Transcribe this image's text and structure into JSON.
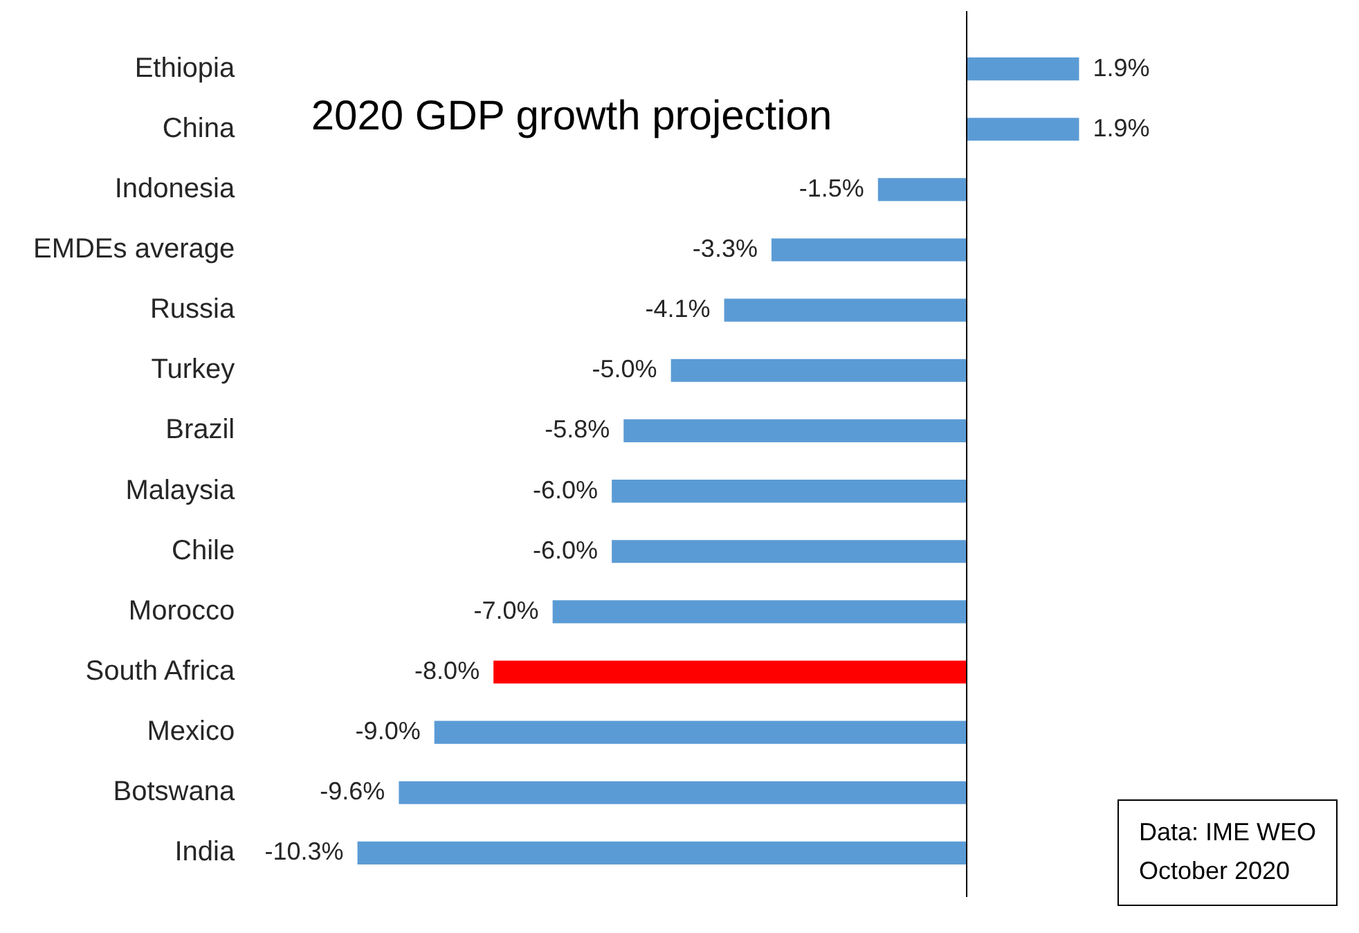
{
  "chart_data": {
    "type": "bar",
    "orientation": "horizontal",
    "title": "2020 GDP growth projection",
    "categories": [
      "Ethiopia",
      "China",
      "Indonesia",
      "EMDEs average",
      "Russia",
      "Turkey",
      "Brazil",
      "Malaysia",
      "Chile",
      "Morocco",
      "South Africa",
      "Mexico",
      "Botswana",
      "India"
    ],
    "values": [
      1.9,
      1.9,
      -1.5,
      -3.3,
      -4.1,
      -5.0,
      -5.8,
      -6.0,
      -6.0,
      -7.0,
      -8.0,
      -9.0,
      -9.6,
      -10.3
    ],
    "colors": [
      "#5b9bd5",
      "#5b9bd5",
      "#5b9bd5",
      "#5b9bd5",
      "#5b9bd5",
      "#5b9bd5",
      "#5b9bd5",
      "#5b9bd5",
      "#5b9bd5",
      "#5b9bd5",
      "#ff0000",
      "#5b9bd5",
      "#5b9bd5",
      "#5b9bd5"
    ],
    "value_labels": [
      "1.9%",
      "1.9%",
      "-1.5%",
      "-3.3%",
      "-4.1%",
      "-5.0%",
      "-5.8%",
      "-6.0%",
      "-6.0%",
      "-7.0%",
      "-8.0%",
      "-9.0%",
      "-9.6%",
      "-10.3%"
    ],
    "annotations": [
      "Data: IME WEO\nOctober 2020"
    ],
    "legend": false
  }
}
